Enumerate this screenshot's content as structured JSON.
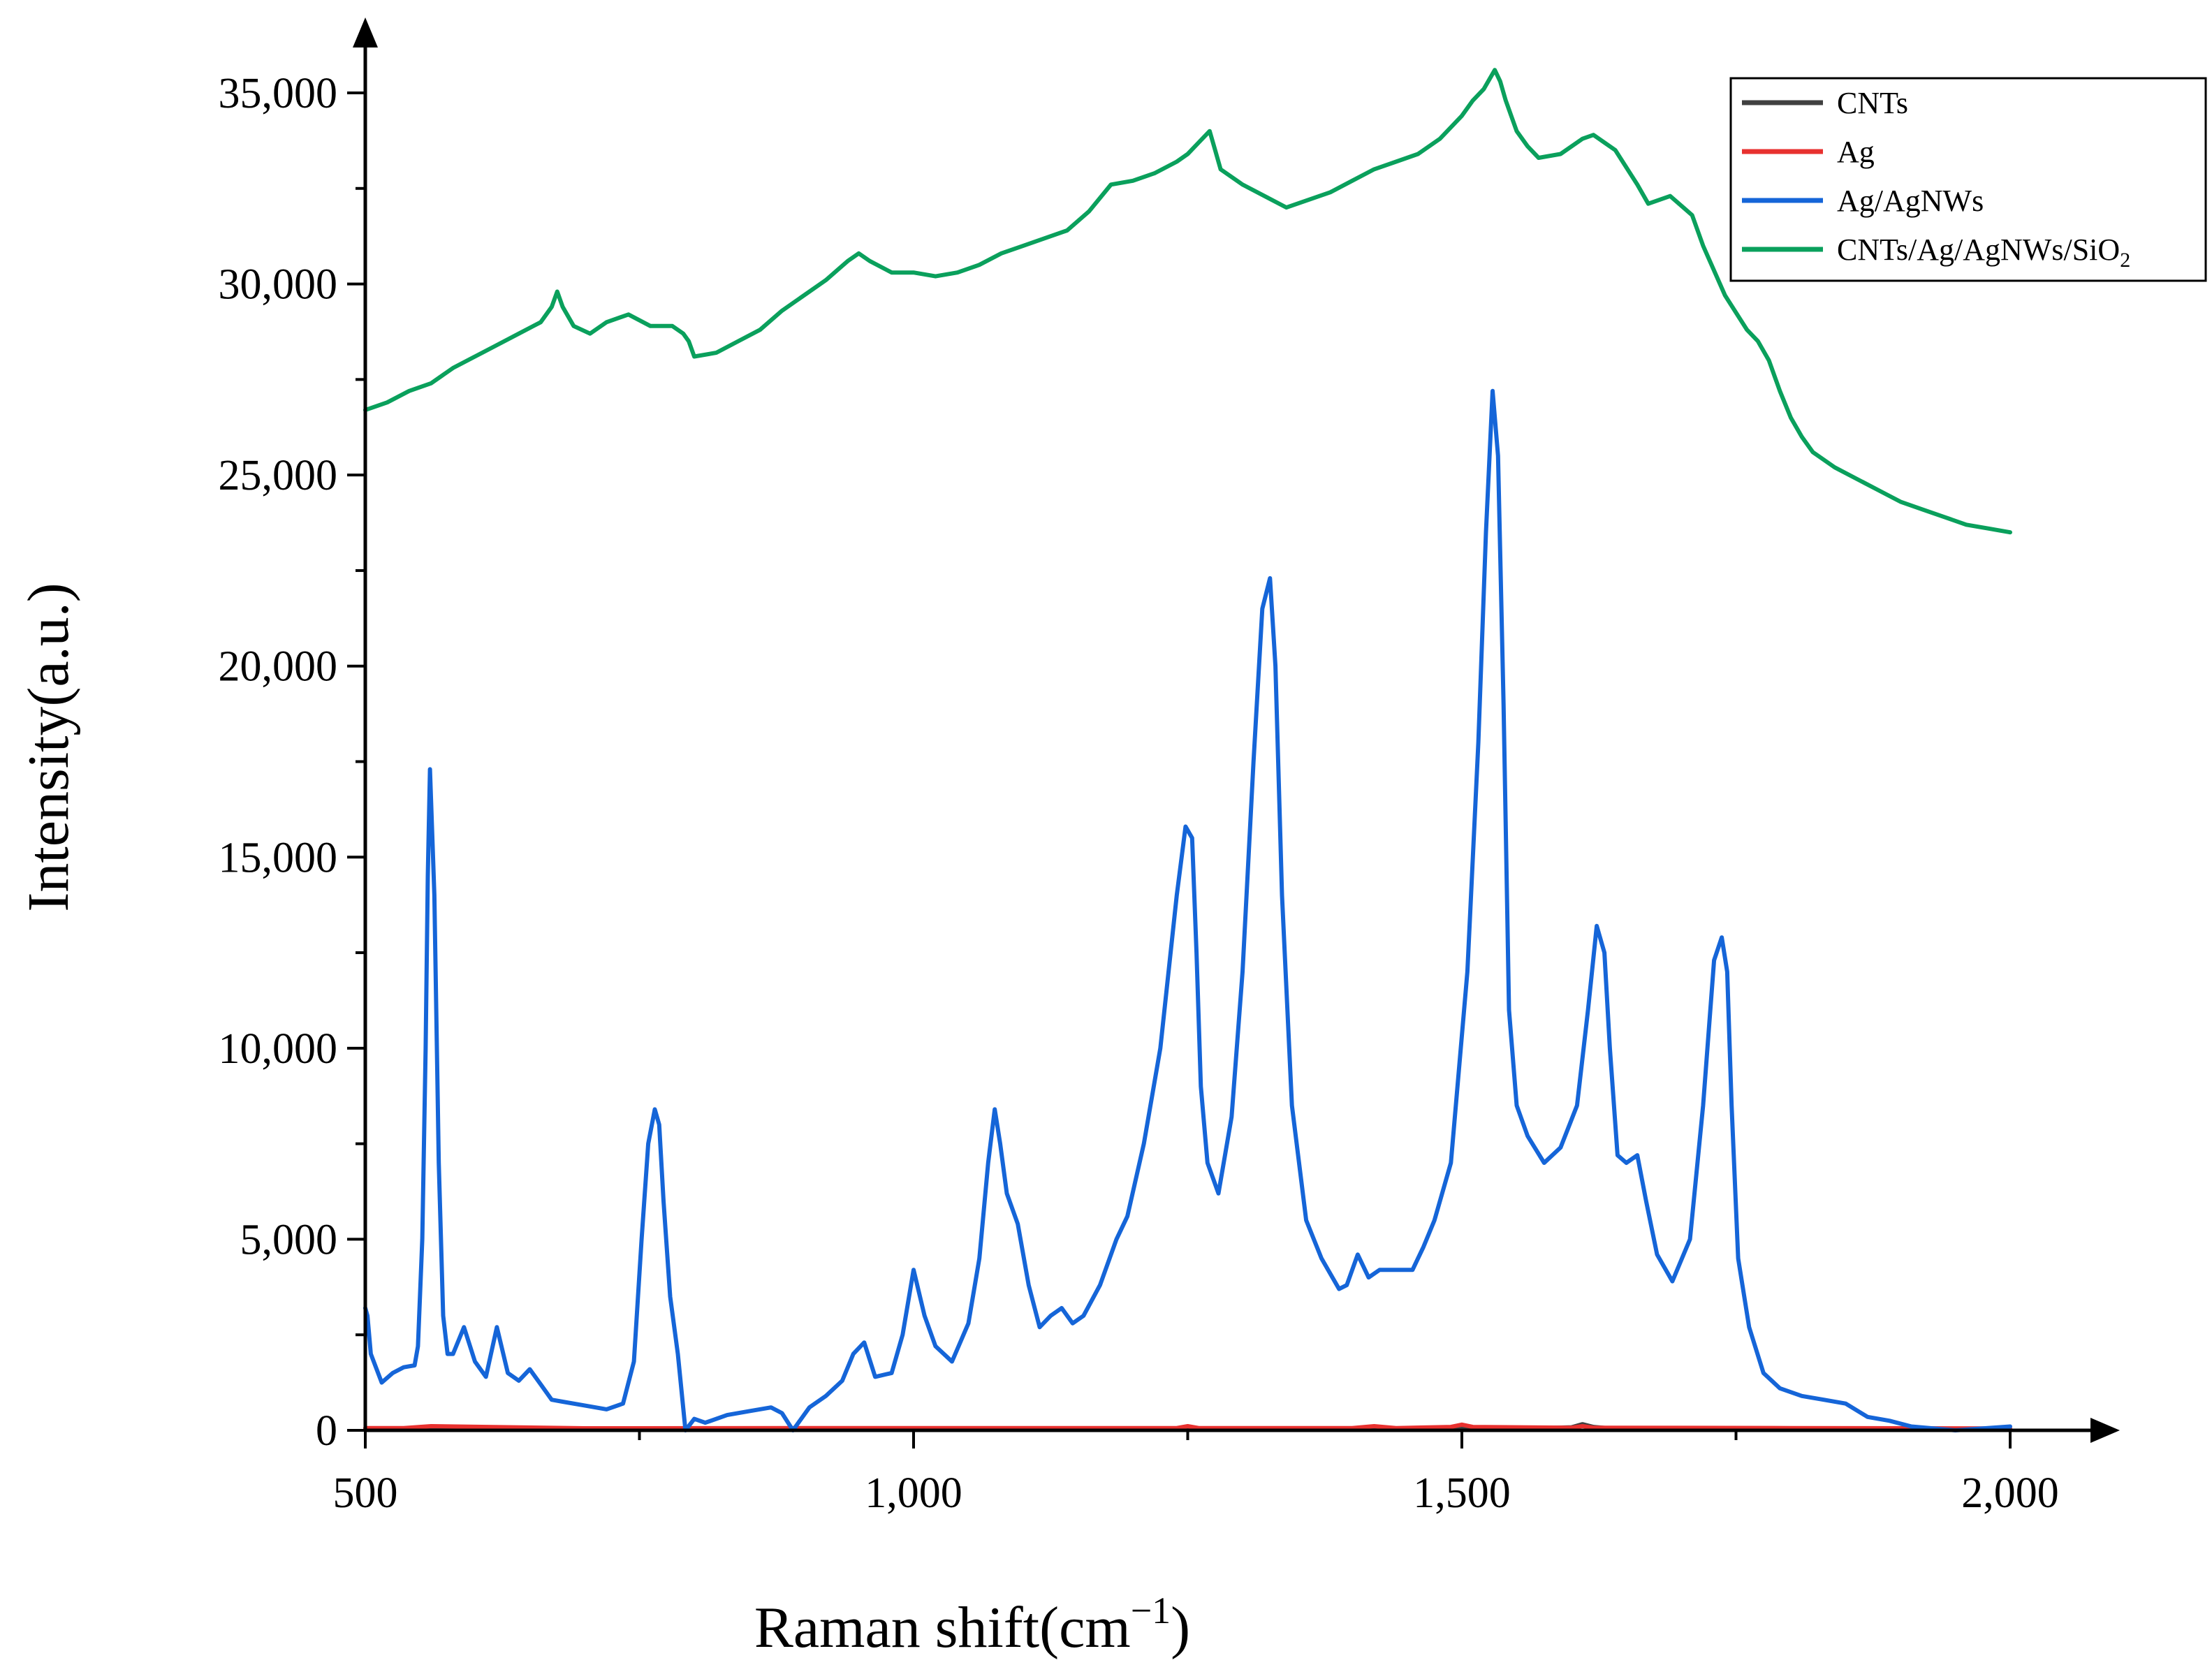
{
  "chart_data": {
    "type": "line",
    "title": "",
    "xlabel": "Raman shift(cm",
    "xlabel_sup": "−1",
    "xlabel_close": ")",
    "ylabel": "Intensity(a.u.)",
    "xlim": [
      500,
      2000
    ],
    "ylim": [
      0,
      36000
    ],
    "xticks": [
      500,
      1000,
      1500,
      2000
    ],
    "xtick_labels": [
      "500",
      "1,000",
      "1,500",
      "2,000"
    ],
    "yticks": [
      0,
      5000,
      10000,
      15000,
      20000,
      25000,
      30000,
      35000
    ],
    "ytick_labels": [
      "0",
      "5,000",
      "10,000",
      "15,000",
      "20,000",
      "25,000",
      "30,000",
      "35,000"
    ],
    "grid": false,
    "legend_position": "top-right",
    "series": [
      {
        "name": "CNTs",
        "color": "#404040",
        "x": [
          500,
          800,
          1200,
          1400,
          1550,
          1600,
          1610,
          1620,
          1640,
          1700,
          2000
        ],
        "y": [
          20,
          20,
          25,
          30,
          40,
          80,
          160,
          90,
          40,
          25,
          20
        ]
      },
      {
        "name": "Ag",
        "color": "#e8312f",
        "x": [
          500,
          535,
          560,
          700,
          900,
          1240,
          1250,
          1260,
          1400,
          1420,
          1440,
          1490,
          1500,
          1510,
          1600,
          1610,
          1620,
          1800,
          2000
        ],
        "y": [
          60,
          60,
          110,
          55,
          60,
          60,
          110,
          60,
          60,
          110,
          60,
          90,
          150,
          90,
          70,
          110,
          70,
          60,
          50
        ]
      },
      {
        "name": "Ag/AgNWs",
        "color": "#1565d8",
        "x": [
          500,
          502,
          505,
          515,
          525,
          535,
          545,
          548,
          552,
          555,
          557,
          559,
          563,
          567,
          571,
          575,
          580,
          590,
          600,
          610,
          620,
          630,
          640,
          650,
          660,
          670,
          680,
          700,
          720,
          735,
          745,
          752,
          758,
          764,
          768,
          772,
          778,
          785,
          792,
          800,
          810,
          830,
          850,
          870,
          880,
          890,
          905,
          920,
          935,
          945,
          955,
          965,
          980,
          990,
          1000,
          1010,
          1020,
          1035,
          1050,
          1060,
          1068,
          1074,
          1079,
          1085,
          1095,
          1105,
          1115,
          1125,
          1135,
          1145,
          1155,
          1170,
          1185,
          1195,
          1210,
          1225,
          1240,
          1248,
          1254,
          1258,
          1262,
          1268,
          1278,
          1290,
          1300,
          1310,
          1318,
          1325,
          1330,
          1336,
          1345,
          1358,
          1372,
          1388,
          1395,
          1405,
          1415,
          1425,
          1440,
          1455,
          1465,
          1475,
          1490,
          1505,
          1515,
          1522,
          1528,
          1533,
          1538,
          1543,
          1550,
          1560,
          1575,
          1590,
          1605,
          1615,
          1623,
          1630,
          1635,
          1642,
          1650,
          1660,
          1668,
          1678,
          1692,
          1708,
          1720,
          1730,
          1737,
          1742,
          1746,
          1752,
          1762,
          1775,
          1790,
          1810,
          1830,
          1850,
          1870,
          1890,
          1910,
          1930,
          1950,
          2000
        ],
        "y": [
          3200,
          3000,
          2000,
          1250,
          1500,
          1650,
          1700,
          2200,
          5000,
          10000,
          14500,
          17300,
          14000,
          7000,
          3000,
          2000,
          2000,
          2700,
          1800,
          1400,
          2700,
          1500,
          1300,
          1600,
          1200,
          800,
          750,
          650,
          550,
          700,
          1800,
          5000,
          7500,
          8400,
          8000,
          6000,
          3500,
          2000,
          0,
          300,
          200,
          400,
          500,
          600,
          450,
          0,
          600,
          900,
          1300,
          2000,
          2300,
          1400,
          1500,
          2500,
          4200,
          3000,
          2200,
          1800,
          2800,
          4500,
          7000,
          8400,
          7500,
          6200,
          5400,
          3800,
          2700,
          3000,
          3200,
          2800,
          3000,
          3800,
          5000,
          5600,
          7500,
          10000,
          14000,
          15800,
          15500,
          12500,
          9000,
          7000,
          6200,
          8200,
          12000,
          17500,
          21500,
          22300,
          20000,
          14000,
          8500,
          5500,
          4500,
          3700,
          3800,
          4600,
          4000,
          4200,
          4200,
          4200,
          4800,
          5500,
          7000,
          12000,
          18000,
          23500,
          27200,
          25500,
          19000,
          11000,
          8500,
          7700,
          7000,
          7400,
          8500,
          11000,
          13200,
          12500,
          10000,
          7200,
          7000,
          7200,
          6000,
          4600,
          3900,
          5000,
          8500,
          12300,
          12900,
          12000,
          8500,
          4500,
          2700,
          1500,
          1100,
          900,
          800,
          700,
          350,
          250,
          100,
          50,
          0,
          100
        ]
      },
      {
        "name": "CNTs/Ag/AgNWs/SiO",
        "name_sub": "2",
        "color": "#0aa05c",
        "x": [
          500,
          520,
          540,
          560,
          580,
          600,
          620,
          640,
          660,
          670,
          675,
          680,
          690,
          705,
          720,
          740,
          760,
          780,
          790,
          795,
          800,
          820,
          840,
          860,
          880,
          900,
          920,
          940,
          950,
          960,
          980,
          1000,
          1020,
          1040,
          1060,
          1080,
          1100,
          1120,
          1140,
          1160,
          1180,
          1200,
          1220,
          1240,
          1250,
          1260,
          1270,
          1275,
          1280,
          1300,
          1320,
          1340,
          1360,
          1380,
          1400,
          1420,
          1440,
          1460,
          1480,
          1500,
          1510,
          1520,
          1530,
          1535,
          1540,
          1550,
          1560,
          1570,
          1590,
          1610,
          1620,
          1630,
          1640,
          1660,
          1670,
          1690,
          1710,
          1720,
          1740,
          1760,
          1770,
          1780,
          1790,
          1800,
          1810,
          1820,
          1840,
          1860,
          1880,
          1900,
          1920,
          1940,
          1960,
          1980,
          2000
        ],
        "y": [
          26700,
          26900,
          27200,
          27400,
          27800,
          28100,
          28400,
          28700,
          29000,
          29400,
          29800,
          29400,
          28900,
          28700,
          29000,
          29200,
          28900,
          28900,
          28700,
          28500,
          28100,
          28200,
          28500,
          28800,
          29300,
          29700,
          30100,
          30600,
          30800,
          30600,
          30300,
          30300,
          30200,
          30300,
          30500,
          30800,
          31000,
          31200,
          31400,
          31900,
          32600,
          32700,
          32900,
          33200,
          33400,
          33700,
          34000,
          33500,
          33000,
          32600,
          32300,
          32000,
          32200,
          32400,
          32700,
          33000,
          33200,
          33400,
          33800,
          34400,
          34800,
          35100,
          35600,
          35300,
          34800,
          34000,
          33600,
          33300,
          33400,
          33800,
          33900,
          33700,
          33500,
          32600,
          32100,
          32300,
          31800,
          31000,
          29700,
          28800,
          28500,
          28000,
          27200,
          26500,
          26000,
          25600,
          25200,
          24900,
          24600,
          24300,
          24100,
          23900,
          23700,
          23600,
          23500
        ]
      }
    ]
  }
}
